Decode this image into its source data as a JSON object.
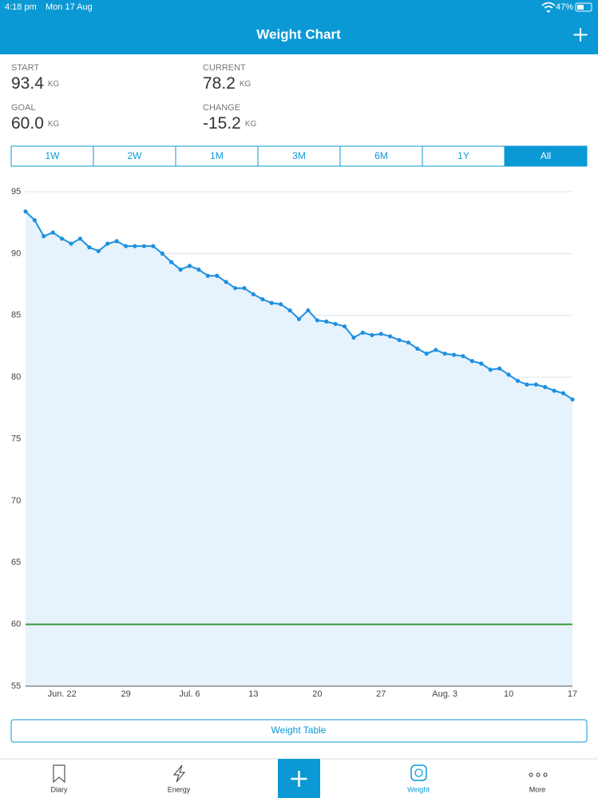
{
  "status_bar": {
    "time": "4:18 pm",
    "date": "Mon 17 Aug",
    "battery": "47%"
  },
  "header": {
    "title": "Weight Chart"
  },
  "stats": [
    {
      "label": "START",
      "value": "93.4",
      "unit": "KG"
    },
    {
      "label": "CURRENT",
      "value": "78.2",
      "unit": "KG"
    },
    {
      "label": "GOAL",
      "value": "60.0",
      "unit": "KG"
    },
    {
      "label": "CHANGE",
      "value": "-15.2",
      "unit": "KG"
    }
  ],
  "range_tabs": {
    "options": [
      "1W",
      "2W",
      "1M",
      "3M",
      "6M",
      "1Y",
      "All"
    ],
    "selected": 6
  },
  "chart_data": {
    "type": "line",
    "categories": [
      null,
      null,
      null,
      null,
      "Jun. 22",
      null,
      null,
      null,
      null,
      null,
      null,
      "29",
      null,
      null,
      null,
      null,
      null,
      null,
      "Jul. 6",
      null,
      null,
      null,
      null,
      null,
      null,
      "13",
      null,
      null,
      null,
      null,
      null,
      null,
      "20",
      null,
      null,
      null,
      null,
      null,
      null,
      "27",
      null,
      null,
      null,
      null,
      null,
      null,
      "Aug. 3",
      null,
      null,
      null,
      null,
      null,
      null,
      "10",
      null,
      null,
      null,
      null,
      null,
      null,
      "17"
    ],
    "series": [
      {
        "color": "#1e90e0",
        "values": [
          93.4,
          92.7,
          91.4,
          91.7,
          91.2,
          90.8,
          91.2,
          90.5,
          90.2,
          90.8,
          91.0,
          90.6,
          90.6,
          90.6,
          90.6,
          90.0,
          89.3,
          88.7,
          89.0,
          88.7,
          88.2,
          88.2,
          87.7,
          87.2,
          87.2,
          86.7,
          86.3,
          86.0,
          85.9,
          85.4,
          84.7,
          85.4,
          84.6,
          84.5,
          84.3,
          84.1,
          83.2,
          83.6,
          83.4,
          83.5,
          83.3,
          83.0,
          82.8,
          82.3,
          81.9,
          82.2,
          81.9,
          81.8,
          81.7,
          81.3,
          81.1,
          80.6,
          80.7,
          80.2,
          79.7,
          79.4,
          79.4,
          79.2,
          78.9,
          78.7,
          78.2
        ]
      }
    ],
    "goal_line": {
      "value": 60,
      "color": "#3a9a3a"
    },
    "ylim": [
      55,
      95
    ],
    "yticks": [
      55,
      60,
      65,
      70,
      75,
      80,
      85,
      90,
      95
    ],
    "grid": true,
    "area": true
  },
  "table_button": "Weight Table",
  "tab_bar": {
    "items": [
      "Diary",
      "Energy",
      "Weight",
      "More"
    ],
    "selected": 2
  }
}
